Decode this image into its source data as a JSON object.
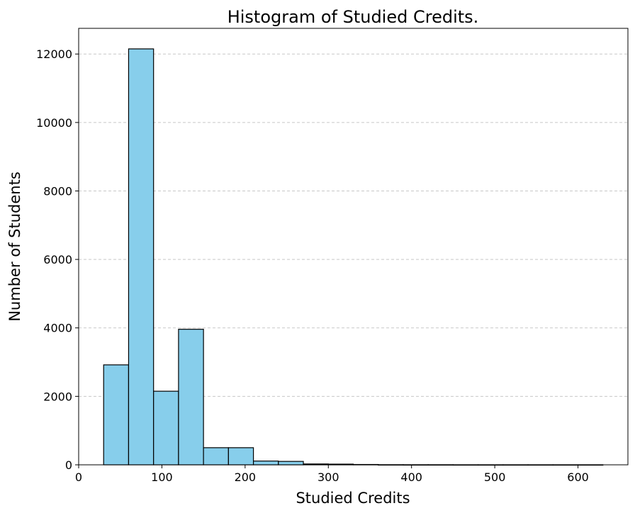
{
  "chart_data": {
    "type": "bar",
    "title": "Histogram of Studied Credits.",
    "xlabel": "Studied Credits",
    "ylabel": "Number of Students",
    "xlim": [
      0,
      660
    ],
    "ylim": [
      0,
      12750
    ],
    "xticks": [
      0,
      100,
      200,
      300,
      400,
      500,
      600
    ],
    "yticks": [
      0,
      2000,
      4000,
      6000,
      8000,
      10000,
      12000
    ],
    "grid": "y-dashed",
    "colors": {
      "bar_fill": "#87CEEB",
      "bar_edge": "#000000",
      "grid": "#c8c8c8"
    },
    "bins": [
      {
        "x0": 30,
        "x1": 60,
        "count": 2920
      },
      {
        "x0": 60,
        "x1": 90,
        "count": 12150
      },
      {
        "x0": 90,
        "x1": 120,
        "count": 2150
      },
      {
        "x0": 120,
        "x1": 150,
        "count": 3960
      },
      {
        "x0": 150,
        "x1": 180,
        "count": 500
      },
      {
        "x0": 180,
        "x1": 210,
        "count": 500
      },
      {
        "x0": 210,
        "x1": 240,
        "count": 110
      },
      {
        "x0": 240,
        "x1": 270,
        "count": 100
      },
      {
        "x0": 270,
        "x1": 300,
        "count": 25
      },
      {
        "x0": 300,
        "x1": 330,
        "count": 20
      },
      {
        "x0": 330,
        "x1": 360,
        "count": 10
      },
      {
        "x0": 360,
        "x1": 390,
        "count": 3
      },
      {
        "x0": 390,
        "x1": 420,
        "count": 2
      },
      {
        "x0": 420,
        "x1": 450,
        "count": 2
      },
      {
        "x0": 450,
        "x1": 480,
        "count": 1
      },
      {
        "x0": 480,
        "x1": 510,
        "count": 1
      },
      {
        "x0": 510,
        "x1": 540,
        "count": 1
      },
      {
        "x0": 540,
        "x1": 570,
        "count": 1
      },
      {
        "x0": 570,
        "x1": 600,
        "count": 1
      },
      {
        "x0": 600,
        "x1": 630,
        "count": 1
      }
    ]
  }
}
